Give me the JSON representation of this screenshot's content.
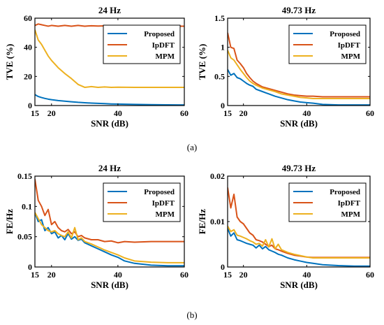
{
  "colors": {
    "Proposed": "#0072BD",
    "IpDFT": "#D95319",
    "MPM": "#EDB120"
  },
  "captions": [
    "(a)",
    "(b)"
  ],
  "chart_data": [
    {
      "type": "line",
      "title": "24 Hz",
      "xlabel": "SNR (dB)",
      "ylabel": "TVE (%)",
      "xlim": [
        15,
        60
      ],
      "ylim": [
        0,
        60
      ],
      "xticks": [
        15,
        20,
        40,
        60
      ],
      "yticks": [
        0,
        20,
        40,
        60
      ],
      "ytick_labels": [
        "0",
        "20",
        "40",
        "60"
      ],
      "grid": false,
      "legend": "top-right",
      "x": [
        15,
        16,
        17,
        18,
        19,
        20,
        22,
        24,
        26,
        28,
        30,
        32,
        34,
        36,
        38,
        40,
        45,
        50,
        55,
        60
      ],
      "series": [
        {
          "name": "Proposed",
          "values": [
            7.5,
            6.2,
            5.5,
            4.9,
            4.4,
            4.0,
            3.4,
            3.0,
            2.6,
            2.2,
            1.9,
            1.7,
            1.5,
            1.3,
            1.1,
            1.0,
            0.8,
            0.6,
            0.5,
            0.4
          ]
        },
        {
          "name": "IpDFT",
          "values": [
            55.0,
            56.0,
            55.5,
            55.0,
            54.5,
            55.0,
            54.5,
            55.0,
            54.5,
            55.0,
            54.5,
            54.8,
            54.6,
            54.7,
            54.5,
            54.6,
            54.5,
            54.5,
            54.5,
            54.5
          ]
        },
        {
          "name": "MPM",
          "values": [
            52.0,
            45.0,
            42.0,
            38.0,
            34.0,
            31.0,
            26.0,
            22.0,
            18.5,
            14.5,
            12.5,
            13.0,
            12.5,
            12.8,
            12.5,
            12.6,
            12.5,
            12.5,
            12.5,
            12.5
          ]
        }
      ]
    },
    {
      "type": "line",
      "title": "49.73 Hz",
      "xlabel": "SNR (dB)",
      "ylabel": "TVE (%)",
      "xlim": [
        15,
        60
      ],
      "ylim": [
        0,
        1.5
      ],
      "xticks": [
        15,
        20,
        40,
        60
      ],
      "yticks": [
        0,
        0.5,
        1,
        1.5
      ],
      "ytick_labels": [
        "0",
        "0.5",
        "1",
        "1.5"
      ],
      "grid": false,
      "legend": "top-right",
      "x": [
        15,
        16,
        17,
        18,
        19,
        20,
        21,
        22,
        23,
        24,
        26,
        28,
        30,
        32,
        34,
        36,
        38,
        40,
        42,
        45,
        50,
        55,
        60
      ],
      "series": [
        {
          "name": "Proposed",
          "values": [
            0.62,
            0.52,
            0.55,
            0.48,
            0.46,
            0.42,
            0.38,
            0.35,
            0.33,
            0.28,
            0.24,
            0.2,
            0.16,
            0.13,
            0.1,
            0.08,
            0.06,
            0.05,
            0.04,
            0.02,
            0.01,
            0.01,
            0.01
          ]
        },
        {
          "name": "IpDFT",
          "values": [
            1.25,
            1.0,
            0.98,
            0.78,
            0.72,
            0.65,
            0.55,
            0.48,
            0.42,
            0.38,
            0.32,
            0.29,
            0.26,
            0.23,
            0.2,
            0.18,
            0.17,
            0.16,
            0.16,
            0.15,
            0.15,
            0.15,
            0.15
          ]
        },
        {
          "name": "MPM",
          "values": [
            0.95,
            0.82,
            0.78,
            0.7,
            0.62,
            0.55,
            0.48,
            0.42,
            0.38,
            0.35,
            0.3,
            0.27,
            0.24,
            0.2,
            0.18,
            0.16,
            0.14,
            0.13,
            0.12,
            0.12,
            0.12,
            0.12,
            0.12
          ]
        }
      ]
    },
    {
      "type": "line",
      "title": "24 Hz",
      "xlabel": "SNR (dB)",
      "ylabel": "FE/Hz",
      "xlim": [
        15,
        60
      ],
      "ylim": [
        0,
        0.15
      ],
      "xticks": [
        15,
        20,
        40,
        60
      ],
      "yticks": [
        0,
        0.05,
        0.1,
        0.15
      ],
      "ytick_labels": [
        "0",
        "0.05",
        "0.1",
        "0.15"
      ],
      "grid": false,
      "legend": "top-right",
      "x": [
        15,
        16,
        17,
        18,
        19,
        20,
        21,
        22,
        23,
        24,
        25,
        26,
        27,
        28,
        29,
        30,
        32,
        34,
        36,
        38,
        40,
        42,
        45,
        50,
        55,
        60
      ],
      "series": [
        {
          "name": "Proposed",
          "values": [
            0.09,
            0.075,
            0.078,
            0.06,
            0.065,
            0.055,
            0.058,
            0.048,
            0.052,
            0.045,
            0.055,
            0.046,
            0.05,
            0.044,
            0.046,
            0.04,
            0.035,
            0.03,
            0.025,
            0.02,
            0.016,
            0.01,
            0.006,
            0.003,
            0.002,
            0.002
          ]
        },
        {
          "name": "IpDFT",
          "values": [
            0.145,
            0.11,
            0.1,
            0.085,
            0.095,
            0.07,
            0.075,
            0.065,
            0.06,
            0.058,
            0.062,
            0.055,
            0.058,
            0.05,
            0.052,
            0.048,
            0.045,
            0.045,
            0.042,
            0.043,
            0.04,
            0.042,
            0.041,
            0.042,
            0.042,
            0.042
          ]
        },
        {
          "name": "MPM",
          "values": [
            0.09,
            0.08,
            0.07,
            0.065,
            0.06,
            0.058,
            0.06,
            0.055,
            0.052,
            0.05,
            0.058,
            0.048,
            0.065,
            0.045,
            0.048,
            0.042,
            0.038,
            0.033,
            0.028,
            0.024,
            0.02,
            0.015,
            0.01,
            0.008,
            0.007,
            0.007
          ]
        }
      ]
    },
    {
      "type": "line",
      "title": "49.73 Hz",
      "xlabel": "SNR (dB)",
      "ylabel": "FE/Hz",
      "xlim": [
        15,
        60
      ],
      "ylim": [
        0,
        0.02
      ],
      "xticks": [
        15,
        20,
        40,
        60
      ],
      "yticks": [
        0,
        0.01,
        0.02
      ],
      "ytick_labels": [
        "0",
        "0.01",
        "0.02"
      ],
      "grid": false,
      "legend": "top-right",
      "x": [
        15,
        16,
        17,
        18,
        19,
        20,
        21,
        22,
        23,
        24,
        25,
        26,
        27,
        28,
        29,
        30,
        31,
        32,
        34,
        36,
        38,
        40,
        42,
        45,
        50,
        55,
        60
      ],
      "series": [
        {
          "name": "Proposed",
          "values": [
            0.0085,
            0.0068,
            0.0075,
            0.006,
            0.0058,
            0.0055,
            0.0052,
            0.005,
            0.0048,
            0.0042,
            0.0048,
            0.004,
            0.0045,
            0.0038,
            0.0035,
            0.0032,
            0.0028,
            0.0026,
            0.002,
            0.0016,
            0.0013,
            0.001,
            0.0008,
            0.0005,
            0.0003,
            0.0002,
            0.0002
          ]
        },
        {
          "name": "IpDFT",
          "values": [
            0.0175,
            0.013,
            0.016,
            0.011,
            0.01,
            0.0095,
            0.0085,
            0.0075,
            0.007,
            0.006,
            0.0058,
            0.0055,
            0.005,
            0.0045,
            0.0048,
            0.004,
            0.0038,
            0.0035,
            0.003,
            0.0026,
            0.0024,
            0.0022,
            0.0021,
            0.0021,
            0.0021,
            0.0021,
            0.0021
          ]
        },
        {
          "name": "MPM",
          "values": [
            0.009,
            0.0078,
            0.0082,
            0.007,
            0.0068,
            0.0065,
            0.0062,
            0.0058,
            0.0055,
            0.005,
            0.0052,
            0.0046,
            0.006,
            0.0044,
            0.0062,
            0.004,
            0.005,
            0.0038,
            0.0032,
            0.0028,
            0.0025,
            0.0022,
            0.002,
            0.002,
            0.002,
            0.002,
            0.002
          ]
        }
      ]
    }
  ]
}
